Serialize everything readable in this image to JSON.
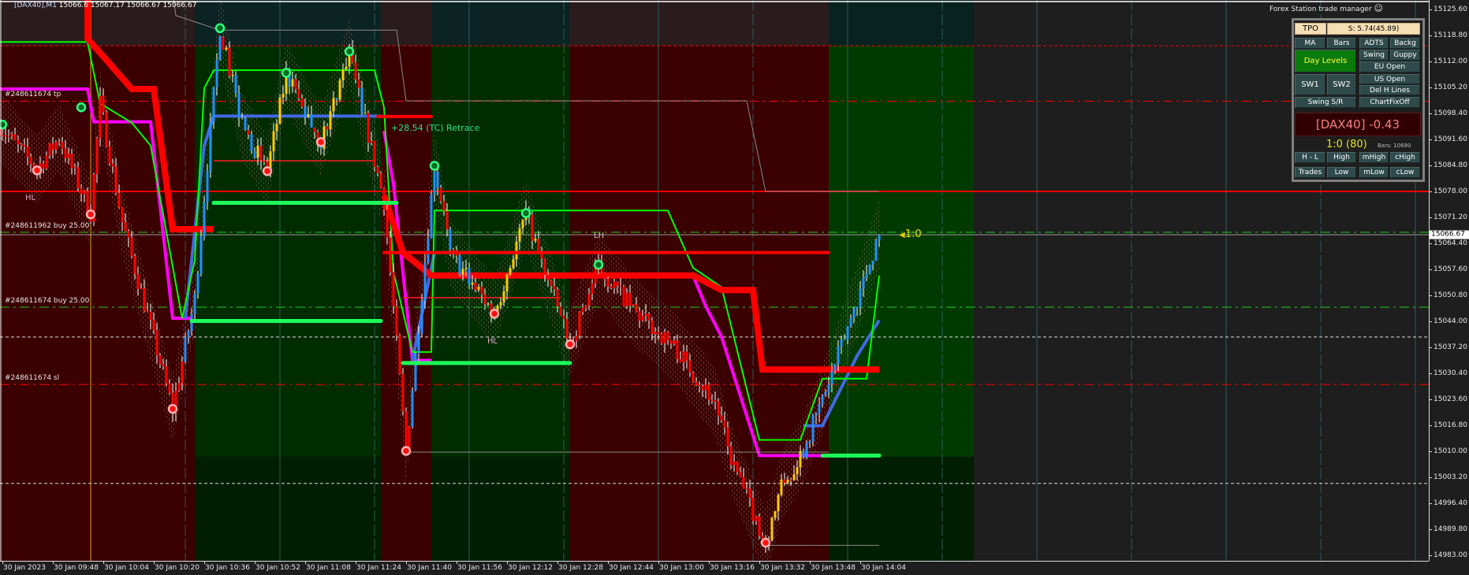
{
  "header": {
    "symbol": "[DAX40],M1",
    "values": "15066.6  15067.17 15066.67 15066.67"
  },
  "trade_manager": {
    "title": "Forex Station trade manager",
    "title_icon": "smiley-icon",
    "tpo": "TPO",
    "spread": "S: 5.74(45.89)",
    "buttons_row1": [
      "MA",
      "Bars",
      "ADTS",
      "Backg"
    ],
    "day_levels": "Day Levels",
    "swing": "Swing",
    "guppy": "Guppy",
    "eu_open": "EU Open",
    "sw1": "SW1",
    "sw2": "SW2",
    "us_open": "US Open",
    "del_h_lines": "Del H Lines",
    "swing_sr": "Swing S/R",
    "chart_fix_off": "ChartFixOff",
    "symbol_change": "[DAX40] -0.43",
    "ratio": "1:0 (80)",
    "bars_count": "Bars: 10690",
    "buttons_row_high": [
      "H - L",
      "High",
      "mHigh",
      "cHigh"
    ],
    "buttons_row_low": [
      "Trades",
      "Low",
      "mLow",
      "cLow"
    ]
  },
  "chart_labels": {
    "tp": "#248611674 tp",
    "buy1": "#248611962 buy 25.00",
    "buy2": "#248611674 buy 25.00",
    "sl": "#248611674 sl",
    "hl1": "HL",
    "hl2": "HL",
    "lh": "LH",
    "retrace": "+28.54 (TC) Retrace",
    "rr": "1:0"
  },
  "colors": {
    "bull": "#1e90ff",
    "bear": "#ff0000",
    "range": "#ffcc00",
    "session_red": "#3b0000",
    "session_green": "#003a00",
    "magenta_line": "#ff00ff",
    "blue_line": "#4169e1",
    "green_line": "#00ff00",
    "level_green": "#1eff5a"
  },
  "chart_data": {
    "type": "candlestick",
    "timeframe": "M1",
    "current_price": "15066.67",
    "y_ticks": [
      "15125.60",
      "15118.80",
      "15112.00",
      "15105.20",
      "15098.40",
      "15091.60",
      "15084.80",
      "15078.00",
      "15071.20",
      "15064.40",
      "15057.60",
      "15050.80",
      "15044.00",
      "15037.20",
      "15030.40",
      "15023.60",
      "15016.80",
      "15010.00",
      "15003.20",
      "14996.40",
      "14989.80",
      "14983.00"
    ],
    "x_ticks": [
      {
        "time": "09:32",
        "label": "30 Jan 2023"
      },
      {
        "time": "09:48",
        "label": "30 Jan 09:48"
      },
      {
        "time": "10:04",
        "label": "30 Jan 10:04"
      },
      {
        "time": "10:20",
        "label": "30 Jan 10:20"
      },
      {
        "time": "10:36",
        "label": "30 Jan 10:36"
      },
      {
        "time": "10:52",
        "label": "30 Jan 10:52"
      },
      {
        "time": "11:08",
        "label": "30 Jan 11:08"
      },
      {
        "time": "11:24",
        "label": "30 Jan 11:24"
      },
      {
        "time": "11:40",
        "label": "30 Jan 11:40"
      },
      {
        "time": "11:56",
        "label": "30 Jan 11:56"
      },
      {
        "time": "12:12",
        "label": "30 Jan 12:12"
      },
      {
        "time": "12:28",
        "label": "30 Jan 12:28"
      },
      {
        "time": "12:44",
        "label": "30 Jan 12:44"
      },
      {
        "time": "13:00",
        "label": "30 Jan 13:00"
      },
      {
        "time": "13:16",
        "label": "30 Jan 13:16"
      },
      {
        "time": "13:32",
        "label": "30 Jan 13:32"
      },
      {
        "time": "13:48",
        "label": "30 Jan 13:48"
      },
      {
        "time": "14:04",
        "label": "30 Jan 14:04"
      }
    ],
    "sessions": [
      {
        "from": "09:31",
        "to": "10:33",
        "type": "red"
      },
      {
        "from": "10:33",
        "to": "11:32",
        "type": "green"
      },
      {
        "from": "11:32",
        "to": "11:48",
        "type": "red"
      },
      {
        "from": "11:48",
        "to": "12:32",
        "type": "green"
      },
      {
        "from": "12:32",
        "to": "13:54",
        "type": "red"
      },
      {
        "from": "13:54",
        "to": "14:40",
        "type": "green"
      }
    ],
    "price_path": [
      [
        "09:31",
        15095.1
      ],
      [
        "09:43",
        15083.9
      ],
      [
        "09:50",
        15092
      ],
      [
        "10:00",
        15072.2
      ],
      [
        "10:03",
        15101.1
      ],
      [
        "10:10",
        15070
      ],
      [
        "10:26",
        15021.1
      ],
      [
        "10:33",
        15050
      ],
      [
        "10:41",
        15120.7
      ],
      [
        "10:48",
        15095
      ],
      [
        "10:56",
        15083.5
      ],
      [
        "11:02",
        15108.5
      ],
      [
        "11:13",
        15090.8
      ],
      [
        "11:22",
        15114.6
      ],
      [
        "11:27",
        15096.3
      ],
      [
        "11:33",
        15075.5
      ],
      [
        "11:40",
        15010
      ],
      [
        "11:49",
        15084.8
      ],
      [
        "11:54",
        15061.9
      ],
      [
        "12:08",
        15046
      ],
      [
        "12:18",
        15072.2
      ],
      [
        "12:22",
        15061.9
      ],
      [
        "12:32",
        15038
      ],
      [
        "12:41",
        15058.2
      ],
      [
        "12:53",
        15046
      ],
      [
        "13:05",
        15037.4
      ],
      [
        "13:18",
        15022.8
      ],
      [
        "13:23",
        15008
      ],
      [
        "13:34",
        14986
      ],
      [
        "13:39",
        15000.7
      ],
      [
        "13:46",
        15010.6
      ],
      [
        "13:55",
        15030.2
      ],
      [
        "14:03",
        15049.8
      ],
      [
        "14:10",
        15066.67
      ]
    ],
    "regimes": [
      {
        "from": "09:31",
        "to": "10:29",
        "trend": "down"
      },
      {
        "from": "10:30",
        "to": "10:41",
        "trend": "up"
      },
      {
        "from": "10:42",
        "to": "11:27",
        "trend": "range"
      },
      {
        "from": "11:28",
        "to": "11:41",
        "trend": "down"
      },
      {
        "from": "11:42",
        "to": "11:49",
        "trend": "up"
      },
      {
        "from": "11:50",
        "to": "12:22",
        "trend": "range"
      },
      {
        "from": "12:23",
        "to": "13:33",
        "trend": "down"
      },
      {
        "from": "13:34",
        "to": "13:45",
        "trend": "range"
      },
      {
        "from": "13:46",
        "to": "14:10",
        "trend": "up"
      }
    ],
    "lines": [
      {
        "name": "magenta-ma",
        "color": "#ff00ff",
        "width": 4,
        "segments": [
          [
            [
              "09:31",
              15104.8
            ],
            [
              "09:59",
              15104.8
            ],
            [
              "10:01",
              15096.2
            ],
            [
              "10:19",
              15096.2
            ],
            [
              "10:26",
              15044.8
            ],
            [
              "10:32",
              15044.8
            ]
          ],
          [
            [
              "11:33",
              15093.8
            ],
            [
              "11:36",
              15080
            ],
            [
              "11:42",
              15033.8
            ],
            [
              "11:48",
              15033.8
            ]
          ],
          [
            [
              "12:32",
              15055.9
            ],
            [
              "13:11",
              15055.9
            ],
            [
              "13:15",
              15048
            ],
            [
              "13:20",
              15040
            ],
            [
              "13:32",
              15008.9
            ],
            [
              "13:52",
              15008.9
            ]
          ]
        ]
      },
      {
        "name": "blue-ma",
        "color": "#4169e1",
        "width": 4,
        "segments": [
          [
            [
              "10:30",
              15044.8
            ],
            [
              "10:36",
              15090
            ],
            [
              "10:39",
              15097.7
            ],
            [
              "11:32",
              15097.7
            ]
          ],
          [
            [
              "11:42",
              15033.8
            ],
            [
              "11:49",
              15062
            ],
            [
              "13:03",
              15062
            ]
          ],
          [
            [
              "13:46",
              15016.7
            ],
            [
              "13:52",
              15016.7
            ],
            [
              "14:03",
              15035
            ],
            [
              "14:10",
              15044.3
            ]
          ]
        ]
      },
      {
        "name": "green-channel",
        "color": "#00ff00",
        "width": 2,
        "segments": [
          [
            [
              "09:31",
              15117.1
            ],
            [
              "09:59",
              15117.1
            ],
            [
              "10:03",
              15101
            ],
            [
              "10:13",
              15096
            ],
            [
              "10:19",
              15090
            ],
            [
              "10:29",
              15044.8
            ],
            [
              "10:33",
              15060
            ],
            [
              "10:36",
              15105
            ],
            [
              "10:39",
              15109.7
            ],
            [
              "11:30",
              15109.7
            ],
            [
              "11:33",
              15100
            ],
            [
              "11:36",
              15057
            ],
            [
              "11:42",
              15036
            ],
            [
              "11:48",
              15036
            ],
            [
              "11:49",
              15073
            ],
            [
              "13:03",
              15073
            ],
            [
              "13:11",
              15058
            ],
            [
              "13:20",
              15053
            ],
            [
              "13:32",
              15013
            ],
            [
              "13:45",
              15013
            ],
            [
              "13:52",
              15029
            ],
            [
              "14:06",
              15029
            ],
            [
              "14:10",
              15056
            ]
          ]
        ]
      },
      {
        "name": "red-staircase",
        "color": "#ff0000",
        "width": 8,
        "segments": [
          [
            [
              "09:59",
              15130
            ],
            [
              "09:59",
              15118
            ],
            [
              "10:13",
              15104.8
            ],
            [
              "10:20",
              15104.8
            ],
            [
              "10:26",
              15068.1
            ],
            [
              "10:39",
              15068.1
            ]
          ],
          [
            [
              "11:33",
              15077
            ],
            [
              "11:39",
              15062
            ],
            [
              "11:48",
              15056
            ],
            [
              "13:11",
              15056
            ],
            [
              "13:20",
              15052.2
            ],
            [
              "13:30",
              15052.2
            ],
            [
              "13:33",
              15031.4
            ],
            [
              "14:10",
              15031.4
            ]
          ]
        ]
      },
      {
        "name": "gray-envelope",
        "color": "#8a8a8a",
        "width": 1,
        "segments": [
          [
            [
              "10:26",
              15130
            ],
            [
              "10:27",
              15124
            ],
            [
              "10:41",
              15120.2
            ],
            [
              "11:37",
              15120.2
            ],
            [
              "11:40",
              15101.7
            ],
            [
              "13:28",
              15101.7
            ],
            [
              "13:34",
              15078
            ],
            [
              "14:10",
              15078
            ]
          ],
          [
            [
              "11:39",
              15009.8
            ],
            [
              "13:54",
              15009.8
            ]
          ],
          [
            [
              "13:33",
              14985.4
            ],
            [
              "14:10",
              14985.4
            ]
          ]
        ]
      },
      {
        "name": "red-thin-channel",
        "color": "#ff2020",
        "width": 1.5,
        "segments": [
          [
            [
              "10:39",
              15086
            ],
            [
              "11:30",
              15086
            ]
          ],
          [
            [
              "11:39",
              15050.2
            ],
            [
              "12:29",
              15050.2
            ]
          ]
        ]
      }
    ],
    "levels": [
      {
        "name": "lh-level",
        "from": "11:33",
        "to": "13:54",
        "price": 15062,
        "color": "#ff0000",
        "width": 4
      },
      {
        "name": "retrace-level",
        "from": "11:31",
        "to": "11:48",
        "price": 15097.6,
        "color": "#ff0000",
        "width": 4
      },
      {
        "name": "support-level",
        "from": "10:39",
        "to": "11:37",
        "price": 15075.0,
        "color": "#1eff5a",
        "width": 5
      },
      {
        "name": "support-level",
        "from": "10:32",
        "to": "11:32",
        "price": 15044.1,
        "color": "#1eff5a",
        "width": 5
      },
      {
        "name": "support-level",
        "from": "11:39",
        "to": "12:32",
        "price": 15033.1,
        "color": "#1eff5a",
        "width": 5
      },
      {
        "name": "support-level",
        "from": "13:52",
        "to": "14:10",
        "price": 15008.9,
        "color": "#1eff5a",
        "width": 5
      }
    ],
    "hlines": [
      {
        "name": "day-level-line",
        "price": 15078.0,
        "color": "#ff0000",
        "style": "solid",
        "width": 2
      },
      {
        "name": "red-dashed-line",
        "price": 15116.1,
        "color": "#ff0000",
        "style": "dash",
        "width": 1
      },
      {
        "name": "tp-line",
        "price": 15101.6,
        "color": "#ff0000",
        "style": "dashdot",
        "width": 1
      },
      {
        "name": "buy-line",
        "price": 15067.3,
        "color": "#22cc22",
        "style": "dashdot",
        "width": 1
      },
      {
        "name": "buy-line",
        "price": 15047.7,
        "color": "#22cc22",
        "style": "dashdot",
        "width": 1
      },
      {
        "name": "white-dashed-line",
        "price": 15039.9,
        "color": "#dddddd",
        "style": "dash",
        "width": 1
      },
      {
        "name": "sl-line",
        "price": 15027.5,
        "color": "#ff0000",
        "style": "dashdot",
        "width": 1
      },
      {
        "name": "white-dashed-line",
        "price": 15001.6,
        "color": "#dddddd",
        "style": "dash",
        "width": 1
      },
      {
        "name": "bid-line",
        "price": 15066.67,
        "color": "#9a9a9a",
        "style": "solid",
        "width": 1
      }
    ],
    "swing_highs": [
      [
        "09:32",
        15095.5
      ],
      [
        "09:57",
        15100
      ],
      [
        "10:41",
        15120.7
      ],
      [
        "11:02",
        15109
      ],
      [
        "11:22",
        15114.6
      ],
      [
        "11:49",
        15084.7
      ],
      [
        "12:18",
        15072.3
      ],
      [
        "12:41",
        15058.8
      ]
    ],
    "swing_lows": [
      [
        "09:43",
        15083.5
      ],
      [
        "10:00",
        15072
      ],
      [
        "10:26",
        15021.1
      ],
      [
        "10:56",
        15083.3
      ],
      [
        "11:13",
        15090.9
      ],
      [
        "11:40",
        15010.1
      ],
      [
        "12:08",
        15046
      ],
      [
        "12:32",
        15038
      ],
      [
        "13:34",
        14986.1
      ]
    ]
  }
}
